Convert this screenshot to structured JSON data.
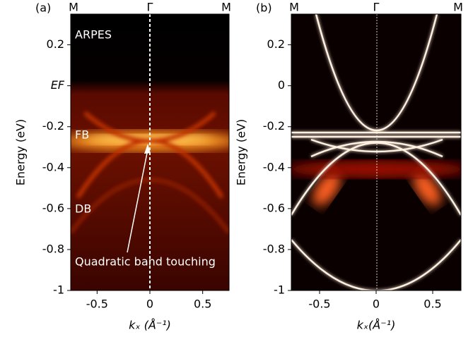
{
  "chart_data": [
    {
      "type": "heatmap",
      "panel_label": "(a)",
      "ylabel": "Energy (eV)",
      "xlabel": "kₓ (Å⁻¹)",
      "top_labels": [
        "M",
        "Γ",
        "M"
      ],
      "annotations": [
        "ARPES",
        "FB",
        "DB",
        "Quadratic band touching"
      ],
      "xlim": [
        -0.75,
        0.75
      ],
      "xticks": [
        -0.5,
        0.0,
        0.5
      ],
      "ylim": [
        -1.0,
        0.35
      ],
      "yticks": [
        -1.0,
        -0.8,
        -0.6,
        -0.4,
        -0.2,
        {
          "value": 0,
          "label": "EF"
        },
        0.2
      ]
    },
    {
      "type": "heatmap",
      "panel_label": "(b)",
      "ylabel": "Energy (eV)",
      "xlabel": "kₓ(Å⁻¹)",
      "top_labels": [
        "M",
        "Γ",
        "M"
      ],
      "xlim": [
        -0.75,
        0.75
      ],
      "xticks": [
        -0.5,
        0.0,
        0.5
      ],
      "ylim": [
        -1.0,
        0.35
      ],
      "yticks": [
        -1.0,
        -0.8,
        -0.6,
        -0.4,
        -0.2,
        0.0,
        0.2
      ]
    }
  ]
}
